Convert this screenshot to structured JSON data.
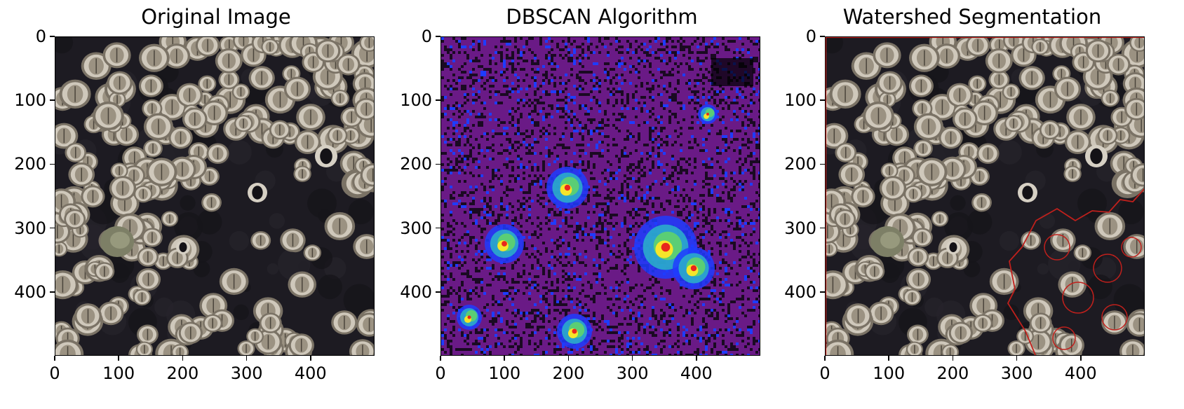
{
  "panels": [
    {
      "id": "original",
      "title": "Original Image",
      "image_description": "close-up photo of a rock covered with clustered barnacles and a small snail shell",
      "x_ticks": [
        "0",
        "100",
        "200",
        "300",
        "400"
      ],
      "y_ticks": [
        "0",
        "100",
        "200",
        "300",
        "400"
      ]
    },
    {
      "id": "dbscan",
      "title": "DBSCAN Algorithm",
      "image_description": "cluster label map rendered with a purple/blue/green/yellow/red colormap",
      "colors": {
        "background": "#6a1a86",
        "dark": "#1a0a22",
        "blue": "#1e3cff",
        "cyan": "#2bb3c8",
        "green": "#5fd36b",
        "yellow": "#f5e52a",
        "red": "#e8261c"
      },
      "x_ticks": [
        "0",
        "100",
        "200",
        "300",
        "400"
      ],
      "y_ticks": [
        "0",
        "100",
        "200",
        "300",
        "400"
      ]
    },
    {
      "id": "watershed",
      "title": "Watershed Segmentation",
      "image_description": "barnacle photo with red watershed segment boundaries outlining barnacles on the right side",
      "colors": {
        "boundary": "#c0201c"
      },
      "x_ticks": [
        "0",
        "100",
        "200",
        "300",
        "400"
      ],
      "y_ticks": [
        "0",
        "100",
        "200",
        "300",
        "400"
      ]
    }
  ]
}
